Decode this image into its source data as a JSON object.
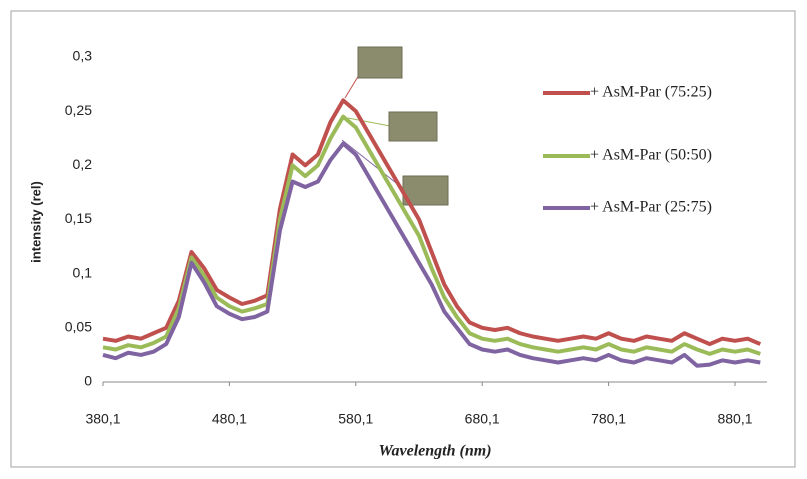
{
  "chart_data": {
    "type": "line",
    "x_label": "Wavelength (nm)",
    "y_label": "intensity (rel)",
    "x": [
      380.1,
      390.1,
      400.1,
      410.1,
      420.1,
      430.1,
      440.1,
      450.1,
      460.1,
      470.1,
      480.1,
      490.1,
      500.1,
      510.1,
      520.1,
      530.1,
      540.1,
      550.1,
      560.1,
      570.1,
      580.1,
      590.1,
      600.1,
      610.1,
      620.1,
      630.1,
      640.1,
      650.1,
      660.1,
      670.1,
      680.1,
      690.1,
      700.1,
      710.1,
      720.1,
      730.1,
      740.1,
      750.1,
      760.1,
      770.1,
      780.1,
      790.1,
      800.1,
      810.1,
      820.1,
      830.1,
      840.1,
      850.1,
      860.1,
      870.1,
      880.1,
      890.1,
      900.1
    ],
    "series": [
      {
        "name": "+ AsM-Par (75:25)",
        "color": "#c0504d",
        "values": [
          0.04,
          0.038,
          0.042,
          0.04,
          0.045,
          0.05,
          0.075,
          0.12,
          0.105,
          0.085,
          0.078,
          0.072,
          0.075,
          0.08,
          0.16,
          0.21,
          0.2,
          0.21,
          0.24,
          0.26,
          0.25,
          0.23,
          0.21,
          0.19,
          0.17,
          0.15,
          0.12,
          0.09,
          0.07,
          0.055,
          0.05,
          0.048,
          0.05,
          0.045,
          0.042,
          0.04,
          0.038,
          0.04,
          0.042,
          0.04,
          0.045,
          0.04,
          0.038,
          0.042,
          0.04,
          0.038,
          0.045,
          0.04,
          0.035,
          0.04,
          0.038,
          0.04,
          0.035
        ]
      },
      {
        "name": "+ AsM-Par (50:50)",
        "color": "#9bbb59",
        "values": [
          0.032,
          0.03,
          0.034,
          0.032,
          0.036,
          0.042,
          0.068,
          0.115,
          0.098,
          0.078,
          0.07,
          0.065,
          0.068,
          0.072,
          0.15,
          0.2,
          0.19,
          0.2,
          0.225,
          0.245,
          0.235,
          0.215,
          0.195,
          0.175,
          0.155,
          0.135,
          0.105,
          0.078,
          0.06,
          0.045,
          0.04,
          0.038,
          0.04,
          0.035,
          0.032,
          0.03,
          0.028,
          0.03,
          0.032,
          0.03,
          0.035,
          0.03,
          0.028,
          0.032,
          0.03,
          0.028,
          0.035,
          0.03,
          0.026,
          0.03,
          0.028,
          0.03,
          0.026
        ]
      },
      {
        "name": "+ AsM-Par (25:75)",
        "color": "#8064a2",
        "values": [
          0.025,
          0.022,
          0.027,
          0.025,
          0.028,
          0.035,
          0.06,
          0.11,
          0.092,
          0.07,
          0.063,
          0.058,
          0.06,
          0.065,
          0.14,
          0.185,
          0.18,
          0.185,
          0.205,
          0.22,
          0.21,
          0.19,
          0.17,
          0.15,
          0.13,
          0.11,
          0.09,
          0.065,
          0.05,
          0.035,
          0.03,
          0.028,
          0.03,
          0.025,
          0.022,
          0.02,
          0.018,
          0.02,
          0.022,
          0.02,
          0.025,
          0.02,
          0.018,
          0.022,
          0.02,
          0.018,
          0.025,
          0.015,
          0.016,
          0.02,
          0.018,
          0.02,
          0.018
        ]
      }
    ],
    "xlim": [
      380.1,
      905
    ],
    "xticks": [
      {
        "value": 380.1,
        "label": "380,1"
      },
      {
        "value": 480.1,
        "label": "480,1"
      },
      {
        "value": 580.1,
        "label": "580,1"
      },
      {
        "value": 680.1,
        "label": "680,1"
      },
      {
        "value": 780.1,
        "label": "780,1"
      },
      {
        "value": 880.1,
        "label": "880,1"
      }
    ],
    "ylim": [
      0,
      0.3
    ],
    "yticks": [
      0,
      {
        "value": 0.05,
        "label": "0,05"
      },
      {
        "value": 0.1,
        "label": "0,1"
      },
      {
        "value": 0.15,
        "label": "0,15"
      },
      {
        "value": 0.2,
        "label": "0,2"
      },
      {
        "value": 0.25,
        "label": "0,25"
      },
      {
        "value": 0.3,
        "label": "0,3"
      }
    ],
    "grid": false,
    "legend": "right"
  }
}
